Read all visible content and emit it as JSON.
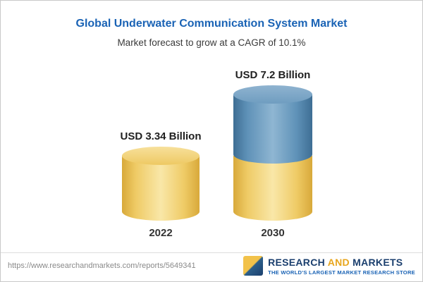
{
  "header": {
    "title": "Global Underwater Communication System Market",
    "subtitle": "Market forecast to grow at a CAGR of 10.1%"
  },
  "chart_data": {
    "type": "bar",
    "categories": [
      "2022",
      "2030"
    ],
    "values": [
      3.34,
      7.2
    ],
    "value_labels": [
      "USD 3.34 Billion",
      "USD 7.2 Billion"
    ],
    "title": "Global Underwater Communication System Market",
    "subtitle": "Market forecast to grow at a CAGR of 10.1%",
    "unit": "USD Billion",
    "cagr": "10.1%",
    "xlabel": "",
    "ylabel": "",
    "legend": "none",
    "grid": false,
    "bar_style": "3d-cylinder",
    "colors": {
      "bar_2022": "#efcb66",
      "bar_2030_bottom": "#efcb66",
      "bar_2030_top": "#5f92b8",
      "title": "#1a63b5"
    }
  },
  "footer": {
    "url": "https://www.researchandmarkets.com/reports/5649341",
    "brand": {
      "research": "RESEARCH ",
      "and": "AND",
      "markets": " MARKETS",
      "tagline": "THE WORLD'S LARGEST MARKET RESEARCH STORE"
    }
  }
}
